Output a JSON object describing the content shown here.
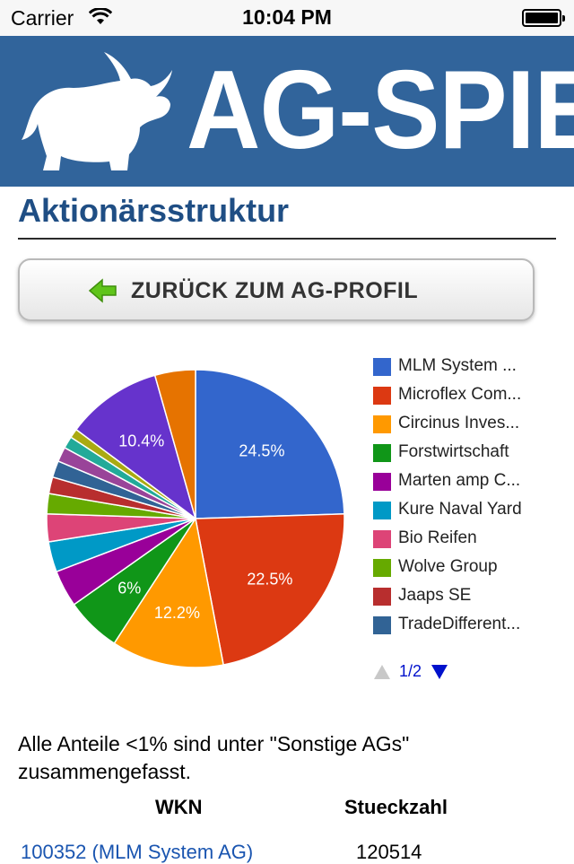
{
  "status_bar": {
    "carrier": "Carrier",
    "time": "10:04 PM"
  },
  "banner": {
    "logo_text": "AG-SPIEL"
  },
  "page": {
    "title": "Aktionärsstruktur"
  },
  "back_button": {
    "label": "ZURÜCK ZUM AG-PROFIL"
  },
  "chart_data": {
    "type": "pie",
    "title": "",
    "slices": [
      {
        "label": "MLM System ...",
        "value": 24.5,
        "color": "#3366cc",
        "shown_label": "24.5%"
      },
      {
        "label": "Microflex Com...",
        "value": 22.5,
        "color": "#dc3912",
        "shown_label": "22.5%"
      },
      {
        "label": "Circinus Inves...",
        "value": 12.2,
        "color": "#ff9900",
        "shown_label": "12.2%"
      },
      {
        "label": "Forstwirtschaft",
        "value": 6,
        "color": "#109618",
        "shown_label": "6%"
      },
      {
        "label": "Marten amp C...",
        "value": 4.0,
        "color": "#990099",
        "shown_label": ""
      },
      {
        "label": "Kure Naval Yard",
        "value": 3.3,
        "color": "#0099c6",
        "shown_label": ""
      },
      {
        "label": "Bio Reifen",
        "value": 3.0,
        "color": "#dd4477",
        "shown_label": ""
      },
      {
        "label": "Wolve Group",
        "value": 2.2,
        "color": "#66aa00",
        "shown_label": ""
      },
      {
        "label": "Jaaps SE",
        "value": 1.8,
        "color": "#b82e2e",
        "shown_label": ""
      },
      {
        "label": "TradeDifferent...",
        "value": 1.8,
        "color": "#316395",
        "shown_label": ""
      },
      {
        "label": "",
        "value": 1.6,
        "color": "#994499",
        "shown_label": ""
      },
      {
        "label": "",
        "value": 1.3,
        "color": "#22aa99",
        "shown_label": ""
      },
      {
        "label": "",
        "value": 1.0,
        "color": "#aaaa11",
        "shown_label": ""
      },
      {
        "label": "",
        "value": 10.4,
        "color": "#6633cc",
        "shown_label": "10.4%"
      },
      {
        "label": "",
        "value": 4.4,
        "color": "#e67300",
        "shown_label": ""
      }
    ],
    "legend_placement": "right",
    "legend_page": "1/2"
  },
  "note": "Alle Anteile <1% sind unter \"Sonstige AGs\" zusammengefasst.",
  "table": {
    "headers": {
      "wkn": "WKN",
      "count": "Stueckzahl"
    },
    "rows": [
      {
        "wkn": "100352 (MLM System AG)",
        "count": "120514"
      }
    ]
  },
  "icons": {
    "wifi": "wifi-icon",
    "battery": "battery-icon",
    "back": "arrow-left-icon",
    "prev": "triangle-up-icon",
    "next": "triangle-down-icon",
    "logo": "bull-logo-icon"
  }
}
